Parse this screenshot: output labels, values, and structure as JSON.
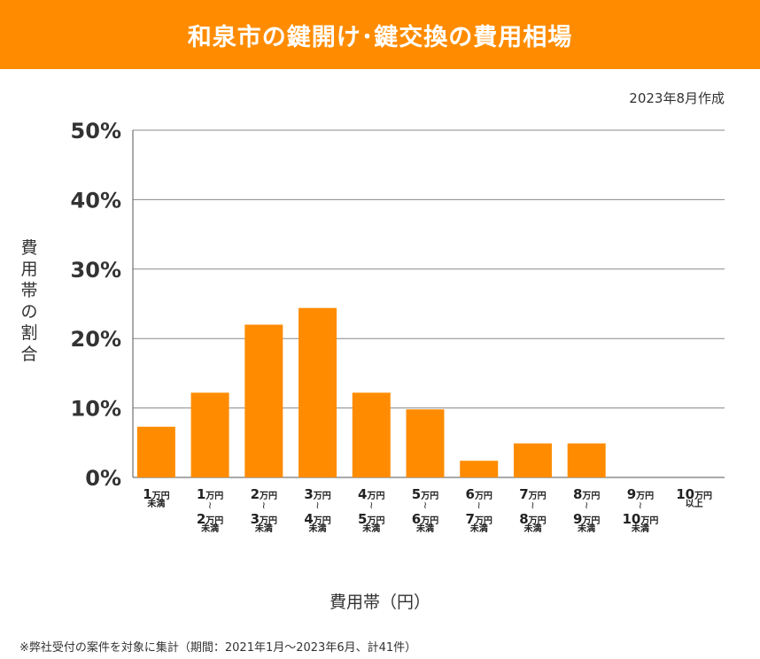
{
  "header": {
    "title": "和泉市の鍵開け･鍵交換の費用相場",
    "accent": "#ff8c00"
  },
  "date_note": "2023年8月作成",
  "footnote": "※弊社受付の案件を対象に集計（期間：2021年1月～2023年6月、計41件）",
  "chart_data": {
    "type": "bar",
    "title": "和泉市の鍵開け･鍵交換の費用相場",
    "xlabel": "費用帯（円）",
    "ylabel": "費用帯の割合",
    "ylim": [
      0,
      50
    ],
    "yticks": [
      "0%",
      "10%",
      "20%",
      "30%",
      "40%",
      "50%"
    ],
    "grid": true,
    "bar_color": "#ff8c00",
    "categories": [
      [
        "1万円",
        "未満"
      ],
      [
        "1万円",
        "〜",
        "2万円",
        "未満"
      ],
      [
        "2万円",
        "〜",
        "3万円",
        "未満"
      ],
      [
        "3万円",
        "〜",
        "4万円",
        "未満"
      ],
      [
        "4万円",
        "〜",
        "5万円",
        "未満"
      ],
      [
        "5万円",
        "〜",
        "6万円",
        "未満"
      ],
      [
        "6万円",
        "〜",
        "7万円",
        "未満"
      ],
      [
        "7万円",
        "〜",
        "8万円",
        "未満"
      ],
      [
        "8万円",
        "〜",
        "9万円",
        "未満"
      ],
      [
        "9万円",
        "〜",
        "10万円",
        "未満"
      ],
      [
        "10万円",
        "以上"
      ]
    ],
    "values": [
      7.3,
      12.2,
      22.0,
      24.4,
      12.2,
      9.8,
      2.4,
      4.9,
      4.9,
      0,
      0
    ]
  }
}
